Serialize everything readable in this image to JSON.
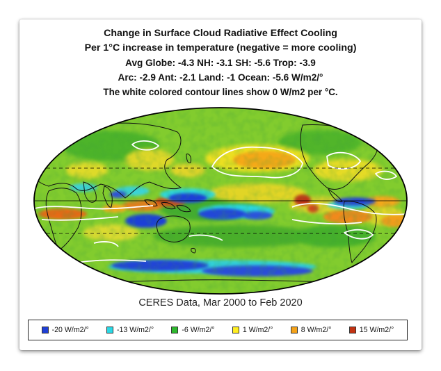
{
  "figure": {
    "title_line1": "Change in Surface Cloud Radiative Effect Cooling",
    "title_line2": "Per 1°C increase in temperature (negative = more cooling)",
    "stats_line1": "Avg Globe: -4.3  NH: -3.1  SH: -5.6  Trop: -3.9",
    "stats_line2": "Arc: -2.9  Ant: -2.1  Land: -1 Ocean: -5.6 W/m2/°",
    "note": "The white colored contour lines show 0 W/m2 per °C.",
    "source": "CERES Data, Mar 2000 to Feb 2020"
  },
  "legend": [
    {
      "label": "-20 W/m2/°",
      "color": "#1f3fd6"
    },
    {
      "label": "-13 W/m2/°",
      "color": "#2ad9e6"
    },
    {
      "label": "-6 W/m2/°",
      "color": "#2eb82e"
    },
    {
      "label": "1 W/m2/°",
      "color": "#ffee22"
    },
    {
      "label": "8 W/m2/°",
      "color": "#f5a31a"
    },
    {
      "label": "15 W/m2/°",
      "color": "#c23212"
    }
  ],
  "map": {
    "projection": "Mollweide",
    "background_color": "#82cc2e",
    "contour_color": "#ffffff",
    "dashed_latitudes": [
      "30°N",
      "30°S"
    ],
    "solid_latitudes": [
      "equator"
    ]
  }
}
